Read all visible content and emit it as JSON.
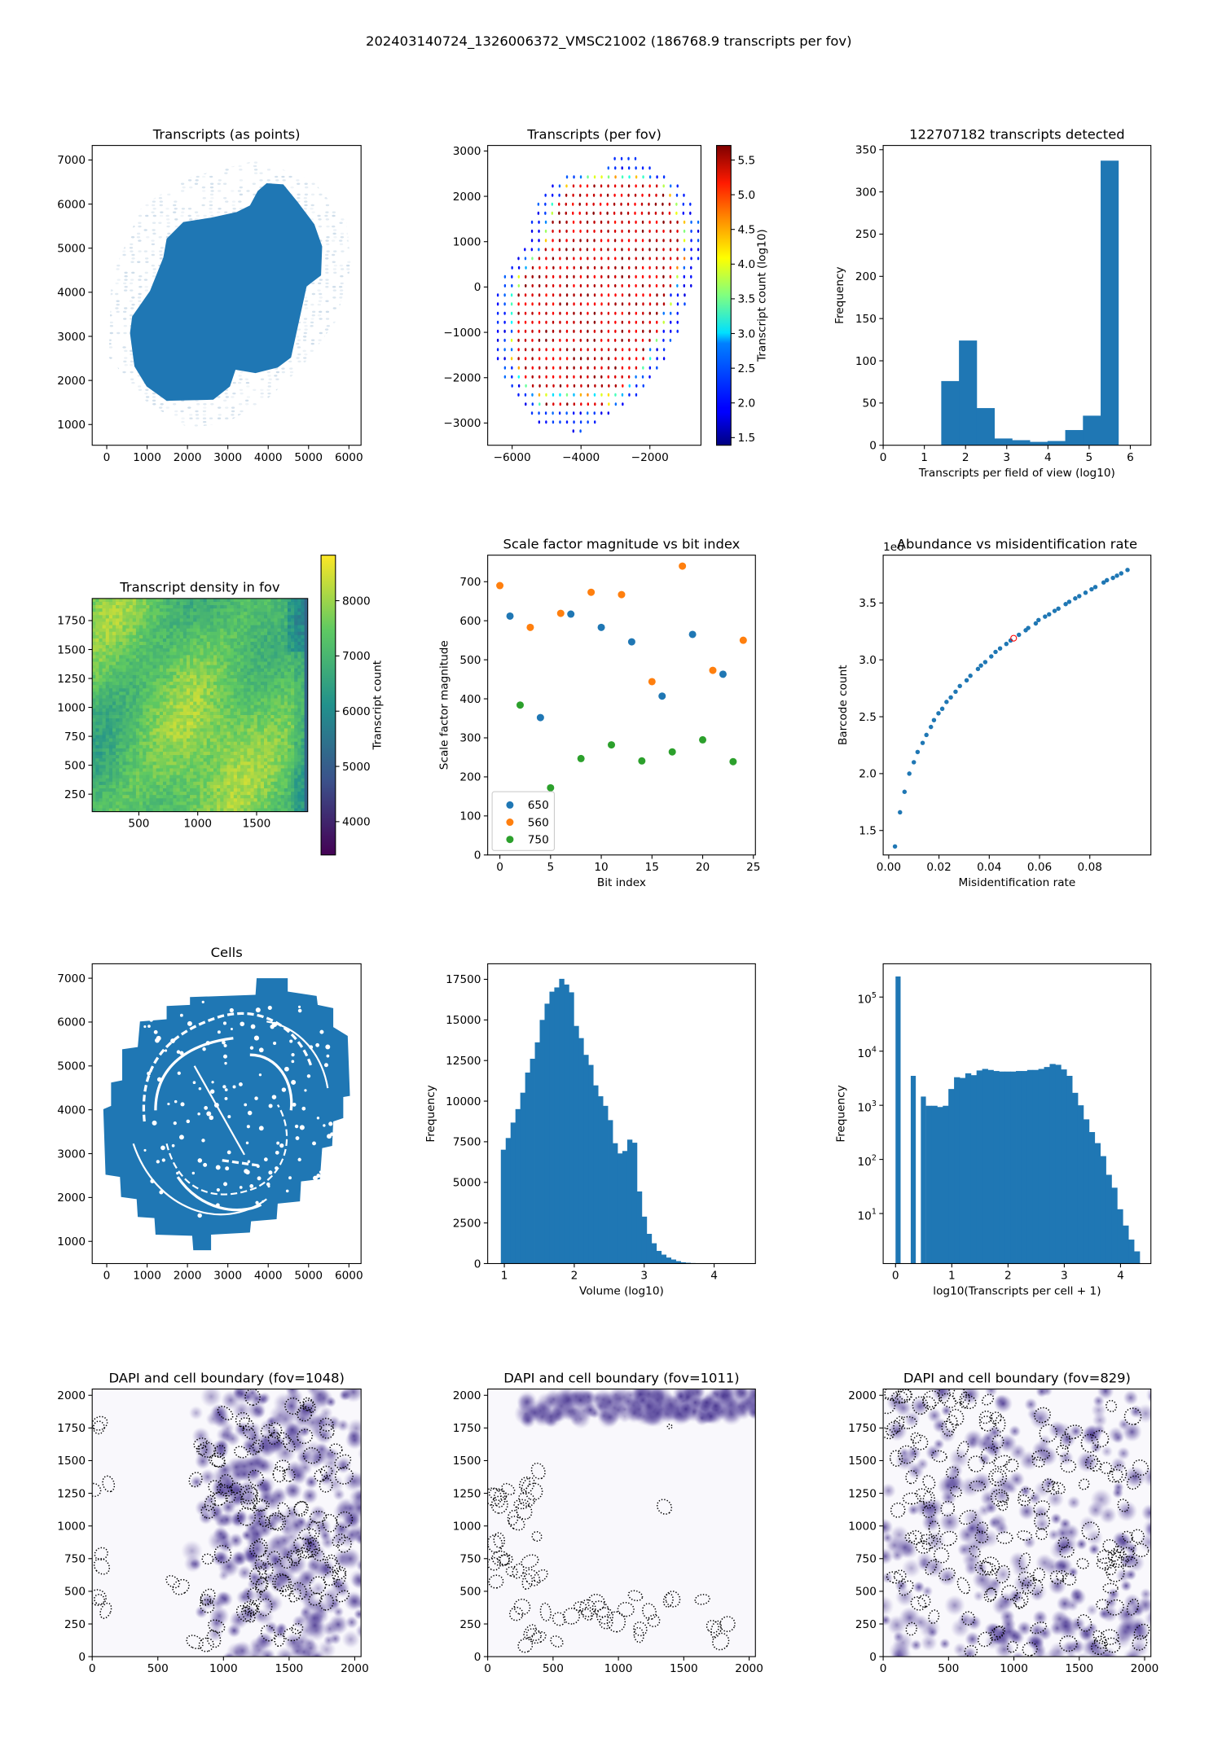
{
  "figure_title": "202403140724_1326006372_VMSC21002 (186768.9 transcripts per fov)",
  "chart_data": [
    {
      "id": "transcripts-as-points",
      "type": "scatter",
      "title": "Transcripts (as points)",
      "xlabel": "",
      "ylabel": "",
      "xlim": [
        -360,
        6300
      ],
      "ylim": [
        530,
        7330
      ],
      "xticks": [
        0,
        1000,
        2000,
        3000,
        4000,
        5000,
        6000
      ],
      "xtick_labels": [
        "0",
        "1000",
        "2000",
        "3000",
        "4000",
        "5000",
        "6000"
      ],
      "yticks": [
        1000,
        2000,
        3000,
        4000,
        5000,
        6000,
        7000
      ],
      "ytick_labels": [
        "1000",
        "2000",
        "3000",
        "4000",
        "5000",
        "6000",
        "7000"
      ],
      "color": "#1f77b4"
    },
    {
      "id": "transcripts-per-fov",
      "type": "scatter",
      "title": "Transcripts (per fov)",
      "xlabel": "",
      "ylabel": "",
      "xlim": [
        -6710,
        -516
      ],
      "ylim": [
        -3490,
        3122
      ],
      "xticks": [
        -6000,
        -4000,
        -2000
      ],
      "xtick_labels": [
        "−6000",
        "−4000",
        "−2000"
      ],
      "yticks": [
        -3000,
        -2000,
        -1000,
        0,
        1000,
        2000,
        3000
      ],
      "ytick_labels": [
        "−3000",
        "−2000",
        "−1000",
        "0",
        "1000",
        "2000",
        "3000"
      ],
      "fov_spacing": 200,
      "fov_rows": [
        [
          2830,
          -3020,
          -2420
        ],
        [
          2624,
          -3205,
          -2005
        ],
        [
          2426,
          -4406,
          -1589
        ],
        [
          2228,
          -4822,
          -1196
        ],
        [
          2023,
          -5030,
          -1012
        ],
        [
          1825,
          -5238,
          -827
        ],
        [
          1627,
          -5238,
          -827
        ],
        [
          1429,
          -5423,
          -596
        ],
        [
          1230,
          -5423,
          -596
        ],
        [
          1025,
          -5423,
          -596
        ],
        [
          827,
          -5630,
          -596
        ],
        [
          629,
          -5815,
          -596
        ],
        [
          424,
          -6000,
          -804
        ],
        [
          226,
          -6208,
          -804
        ],
        [
          27,
          -6208,
          -804
        ],
        [
          -178,
          -6415,
          -989
        ],
        [
          -376,
          -6415,
          -989
        ],
        [
          -581,
          -6415,
          -1196
        ],
        [
          -779,
          -6415,
          -1196
        ],
        [
          -978,
          -6415,
          -1196
        ],
        [
          -1176,
          -6415,
          -1404
        ],
        [
          -1381,
          -6415,
          -1589
        ],
        [
          -1579,
          -6415,
          -1589
        ],
        [
          -1784,
          -6208,
          -1797
        ],
        [
          -1982,
          -6208,
          -2005
        ],
        [
          -2180,
          -6000,
          -2189
        ],
        [
          -2379,
          -5815,
          -2397
        ],
        [
          -2584,
          -5607,
          -2790
        ],
        [
          -2782,
          -5423,
          -3205
        ],
        [
          -2980,
          -5215,
          -3598
        ],
        [
          -3178,
          -4222,
          -4014
        ]
      ],
      "value_range_log10": [
        1.8,
        5.7
      ],
      "colormap": "jet",
      "colorbar": {
        "label": "Transcript count (log10)",
        "ylim": [
          1.39,
          5.71
        ],
        "yticks": [
          1.5,
          2.0,
          2.5,
          3.0,
          3.5,
          4.0,
          4.5,
          5.0,
          5.5
        ],
        "ytick_labels": [
          "1.5",
          "2.0",
          "2.5",
          "3.0",
          "3.5",
          "4.0",
          "4.5",
          "5.0",
          "5.5"
        ]
      }
    },
    {
      "id": "transcripts-detected-histogram",
      "type": "bar",
      "title": "122707182 transcripts detected",
      "xlabel": "Transcripts per field of view (log10)",
      "ylabel": "Frequency",
      "xlim": [
        0,
        6.5
      ],
      "ylim": [
        0,
        355
      ],
      "xticks": [
        0,
        1,
        2,
        3,
        4,
        5,
        6
      ],
      "xtick_labels": [
        "0",
        "1",
        "2",
        "3",
        "4",
        "5",
        "6"
      ],
      "yticks": [
        0,
        50,
        100,
        150,
        200,
        250,
        300,
        350
      ],
      "ytick_labels": [
        "0",
        "50",
        "100",
        "150",
        "200",
        "250",
        "300",
        "350"
      ],
      "bin_start": 1.41,
      "bin_width": 0.43,
      "values": [
        76,
        124,
        44,
        8,
        6,
        4,
        5,
        18,
        35,
        337
      ],
      "color": "#1f77b4"
    },
    {
      "id": "transcript-density-in-fov",
      "type": "heatmap",
      "title": "Transcript density in fov",
      "xlabel": "",
      "ylabel": "",
      "xlim": [
        104,
        1934
      ],
      "ylim": [
        99,
        1941
      ],
      "xticks": [
        500,
        1000,
        1500
      ],
      "xtick_labels": [
        "500",
        "1000",
        "1500"
      ],
      "yticks": [
        250,
        500,
        750,
        1000,
        1250,
        1500,
        1750
      ],
      "ytick_labels": [
        "250",
        "500",
        "750",
        "1000",
        "1250",
        "1500",
        "1750"
      ],
      "value_range": [
        5500,
        8600
      ],
      "colormap": "viridis",
      "colorbar": {
        "label": "Transcript count",
        "ylim": [
          3397,
          8824
        ],
        "yticks": [
          4000,
          5000,
          6000,
          7000,
          8000
        ],
        "ytick_labels": [
          "4000",
          "5000",
          "6000",
          "7000",
          "8000"
        ]
      }
    },
    {
      "id": "scale-factor-vs-bit-index",
      "type": "scatter",
      "title": "Scale factor magnitude vs bit index",
      "xlabel": "Bit index",
      "ylabel": "Scale factor magnitude",
      "xlim": [
        -1.2,
        25.2
      ],
      "ylim": [
        0,
        768
      ],
      "xticks": [
        0,
        5,
        10,
        15,
        20,
        25
      ],
      "xtick_labels": [
        "0",
        "5",
        "10",
        "15",
        "20",
        "25"
      ],
      "yticks": [
        0,
        100,
        200,
        300,
        400,
        500,
        600,
        700
      ],
      "ytick_labels": [
        "0",
        "100",
        "200",
        "300",
        "400",
        "500",
        "600",
        "700"
      ],
      "legend_position": "lower-left",
      "series": [
        {
          "name": "650",
          "color": "#1f77b4",
          "x": [
            1,
            4,
            7,
            10,
            13,
            16,
            19,
            22
          ],
          "y": [
            612,
            352,
            617,
            583,
            546,
            407,
            565,
            463
          ]
        },
        {
          "name": "560",
          "color": "#ff7f0e",
          "x": [
            0,
            3,
            6,
            9,
            12,
            15,
            18,
            21,
            24
          ],
          "y": [
            690,
            583,
            619,
            673,
            667,
            444,
            740,
            473,
            550
          ]
        },
        {
          "name": "750",
          "color": "#2ca02c",
          "x": [
            2,
            5,
            8,
            11,
            14,
            17,
            20,
            23
          ],
          "y": [
            384,
            172,
            247,
            282,
            241,
            264,
            295,
            239
          ]
        }
      ]
    },
    {
      "id": "abundance-vs-misidentification",
      "type": "scatter",
      "title": "Abundance vs misidentification rate",
      "xlabel": "Misidentification rate",
      "ylabel": "Barcode count",
      "y_offset_label": "1e6",
      "xlim": [
        -0.0022,
        0.1043
      ],
      "ylim": [
        1.285,
        3.92
      ],
      "xticks": [
        0,
        0.02,
        0.04,
        0.06,
        0.08
      ],
      "xtick_labels": [
        "0.00",
        "0.02",
        "0.04",
        "0.06",
        "0.08"
      ],
      "yticks": [
        1.5,
        2.0,
        2.5,
        3.0,
        3.5
      ],
      "ytick_labels": [
        "1.5",
        "2.0",
        "2.5",
        "3.0",
        "3.5"
      ],
      "x": [
        0.0025,
        0.0045,
        0.0063,
        0.0082,
        0.01,
        0.0115,
        0.0135,
        0.015,
        0.0168,
        0.018,
        0.0198,
        0.0213,
        0.023,
        0.0247,
        0.0266,
        0.0283,
        0.031,
        0.0325,
        0.0355,
        0.0367,
        0.0384,
        0.0408,
        0.0425,
        0.0443,
        0.0468,
        0.0485,
        0.0518,
        0.0545,
        0.0555,
        0.0585,
        0.0596,
        0.0622,
        0.0638,
        0.066,
        0.0675,
        0.0704,
        0.0718,
        0.0742,
        0.0758,
        0.0783,
        0.0807,
        0.0822,
        0.0855,
        0.0868,
        0.0892,
        0.0908,
        0.0925,
        0.095
      ],
      "y": [
        1.36,
        1.66,
        1.84,
        2.0,
        2.1,
        2.19,
        2.27,
        2.34,
        2.41,
        2.47,
        2.53,
        2.57,
        2.63,
        2.67,
        2.72,
        2.77,
        2.82,
        2.86,
        2.92,
        2.95,
        2.98,
        3.03,
        3.07,
        3.1,
        3.14,
        3.17,
        3.22,
        3.26,
        3.28,
        3.32,
        3.35,
        3.38,
        3.4,
        3.43,
        3.45,
        3.49,
        3.51,
        3.54,
        3.56,
        3.59,
        3.62,
        3.64,
        3.68,
        3.7,
        3.72,
        3.74,
        3.76,
        3.79
      ],
      "highlight": {
        "x": 0.0497,
        "y": 3.19,
        "color": "#ff0000"
      },
      "color": "#1f77b4"
    },
    {
      "id": "cells",
      "type": "scatter",
      "title": "Cells",
      "xlabel": "",
      "ylabel": "",
      "xlim": [
        -360,
        6300
      ],
      "ylim": [
        494,
        7329
      ],
      "xticks": [
        0,
        1000,
        2000,
        3000,
        4000,
        5000,
        6000
      ],
      "xtick_labels": [
        "0",
        "1000",
        "2000",
        "3000",
        "4000",
        "5000",
        "6000"
      ],
      "yticks": [
        1000,
        2000,
        3000,
        4000,
        5000,
        6000,
        7000
      ],
      "ytick_labels": [
        "1000",
        "2000",
        "3000",
        "4000",
        "5000",
        "6000",
        "7000"
      ],
      "color": "#1f77b4"
    },
    {
      "id": "volume-histogram",
      "type": "bar",
      "title": "",
      "xlabel": "Volume (log10)",
      "ylabel": "Frequency",
      "xlim": [
        0.762,
        4.59
      ],
      "ylim": [
        0,
        18457
      ],
      "xticks": [
        1,
        2,
        3,
        4
      ],
      "xtick_labels": [
        "1",
        "2",
        "3",
        "4"
      ],
      "yticks": [
        0,
        2500,
        5000,
        7500,
        10000,
        12500,
        15000,
        17500
      ],
      "ytick_labels": [
        "0",
        "2500",
        "5000",
        "7500",
        "10000",
        "12500",
        "15000",
        "17500"
      ],
      "bin_start": 0.95,
      "bin_width": 0.0695,
      "values": [
        7010,
        7730,
        8680,
        9510,
        10520,
        11760,
        12610,
        13620,
        15000,
        16000,
        16740,
        17000,
        17530,
        17180,
        16700,
        14630,
        13880,
        12850,
        12230,
        10970,
        10300,
        9710,
        8830,
        7410,
        6780,
        6930,
        7630,
        7440,
        4440,
        2890,
        1830,
        1250,
        780,
        550,
        370,
        250,
        150,
        80,
        50,
        30,
        20,
        10,
        6,
        4,
        2,
        1,
        1,
        1
      ],
      "color": "#1f77b4"
    },
    {
      "id": "transcripts-per-cell-histogram",
      "type": "bar",
      "title": "",
      "xlabel": "log10(Transcripts per cell + 1)",
      "ylabel": "Frequency",
      "ylog": true,
      "xlim": [
        -0.22,
        4.54
      ],
      "ylim": [
        1.19,
        412000
      ],
      "xticks": [
        0,
        1,
        2,
        3,
        4
      ],
      "xtick_labels": [
        "0",
        "1",
        "2",
        "3",
        "4"
      ],
      "yticks": [
        10,
        100,
        1000,
        10000,
        100000
      ],
      "ytick_labels": [
        "10^1",
        "10^2",
        "10^3",
        "10^4",
        "10^5"
      ],
      "isolated_bars": [
        [
          0.0,
          0.09,
          240000
        ],
        [
          0.27,
          0.36,
          3500
        ],
        [
          0.45,
          0.54,
          1450
        ]
      ],
      "bin_start": 0.54,
      "bin_width": 0.1,
      "values": [
        980,
        980,
        930,
        980,
        2000,
        3300,
        3200,
        3900,
        3600,
        4400,
        4700,
        4500,
        4300,
        4200,
        4200,
        4200,
        4300,
        4300,
        4500,
        4500,
        4700,
        5100,
        5800,
        5600,
        4600,
        3500,
        1700,
        1000,
        550,
        320,
        200,
        115,
        52,
        30,
        12,
        6,
        3.3,
        2
      ],
      "color": "#1f77b4"
    },
    {
      "id": "dapi-fov-1048",
      "type": "image",
      "title": "DAPI and cell boundary (fov=1048)",
      "xlim": [
        0,
        2048
      ],
      "ylim": [
        0,
        2048
      ],
      "xticks": [
        0,
        500,
        1000,
        1500,
        2000
      ],
      "xtick_labels": [
        "0",
        "500",
        "1000",
        "1500",
        "2000"
      ],
      "yticks": [
        0,
        250,
        500,
        750,
        1000,
        1250,
        1500,
        1750,
        2000
      ],
      "ytick_labels": [
        "0",
        "250",
        "500",
        "750",
        "1000",
        "1250",
        "1500",
        "1750",
        "2000"
      ]
    },
    {
      "id": "dapi-fov-1011",
      "type": "image",
      "title": "DAPI and cell boundary (fov=1011)",
      "xlim": [
        0,
        2048
      ],
      "ylim": [
        0,
        2048
      ],
      "xticks": [
        0,
        500,
        1000,
        1500,
        2000
      ],
      "xtick_labels": [
        "0",
        "500",
        "1000",
        "1500",
        "2000"
      ],
      "yticks": [
        0,
        250,
        500,
        750,
        1000,
        1250,
        1500,
        1750,
        2000
      ],
      "ytick_labels": [
        "0",
        "250",
        "500",
        "750",
        "1000",
        "1250",
        "1500",
        "1750",
        "2000"
      ]
    },
    {
      "id": "dapi-fov-829",
      "type": "image",
      "title": "DAPI and cell boundary (fov=829)",
      "xlim": [
        0,
        2048
      ],
      "ylim": [
        0,
        2048
      ],
      "xticks": [
        0,
        500,
        1000,
        1500,
        2000
      ],
      "xtick_labels": [
        "0",
        "500",
        "1000",
        "1500",
        "2000"
      ],
      "yticks": [
        0,
        250,
        500,
        750,
        1000,
        1250,
        1500,
        1750,
        2000
      ],
      "ytick_labels": [
        "0",
        "250",
        "500",
        "750",
        "1000",
        "1250",
        "1500",
        "1750",
        "2000"
      ]
    }
  ]
}
